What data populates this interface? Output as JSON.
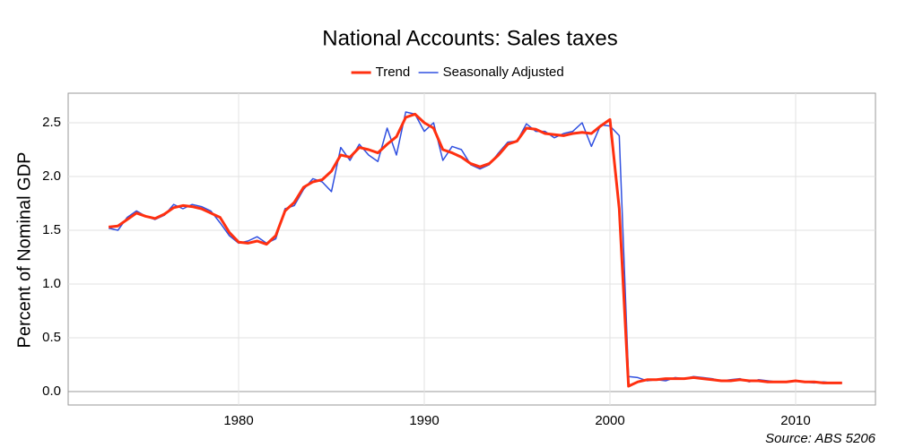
{
  "chart_data": {
    "type": "line",
    "title": "National Accounts: Sales taxes",
    "y_label": "Percent of Nominal GDP",
    "annotation": "Source: ABS 5206",
    "legend": "top",
    "grid": true,
    "x": [
      1973.0,
      1973.5,
      1974.0,
      1974.5,
      1975.0,
      1975.5,
      1976.0,
      1976.5,
      1977.0,
      1977.5,
      1978.0,
      1978.5,
      1979.0,
      1979.5,
      1980.0,
      1980.5,
      1981.0,
      1981.5,
      1982.0,
      1982.5,
      1983.0,
      1983.5,
      1984.0,
      1984.5,
      1985.0,
      1985.5,
      1986.0,
      1986.5,
      1987.0,
      1987.5,
      1988.0,
      1988.5,
      1989.0,
      1989.5,
      1990.0,
      1990.5,
      1991.0,
      1991.5,
      1992.0,
      1992.5,
      1993.0,
      1993.5,
      1994.0,
      1994.5,
      1995.0,
      1995.5,
      1996.0,
      1996.5,
      1997.0,
      1997.5,
      1998.0,
      1998.5,
      1999.0,
      1999.5,
      2000.0,
      2000.5,
      2001.0,
      2001.5,
      2002.0,
      2002.5,
      2003.0,
      2003.5,
      2004.0,
      2004.5,
      2005.0,
      2005.5,
      2006.0,
      2006.5,
      2007.0,
      2007.5,
      2008.0,
      2008.5,
      2009.0,
      2009.5,
      2010.0,
      2010.5,
      2011.0,
      2011.5,
      2012.0,
      2012.5
    ],
    "series": [
      {
        "name": "Trend",
        "color": "#ff3010",
        "values": [
          1.53,
          1.54,
          1.6,
          1.66,
          1.63,
          1.61,
          1.65,
          1.71,
          1.73,
          1.72,
          1.7,
          1.66,
          1.62,
          1.48,
          1.39,
          1.38,
          1.4,
          1.37,
          1.45,
          1.68,
          1.76,
          1.9,
          1.95,
          1.97,
          2.05,
          2.2,
          2.18,
          2.27,
          2.25,
          2.22,
          2.3,
          2.37,
          2.55,
          2.58,
          2.5,
          2.45,
          2.25,
          2.22,
          2.18,
          2.12,
          2.09,
          2.12,
          2.2,
          2.3,
          2.33,
          2.45,
          2.44,
          2.4,
          2.39,
          2.38,
          2.4,
          2.41,
          2.4,
          2.47,
          2.53,
          1.7,
          0.05,
          0.09,
          0.11,
          0.11,
          0.12,
          0.12,
          0.12,
          0.13,
          0.12,
          0.11,
          0.1,
          0.1,
          0.11,
          0.1,
          0.1,
          0.09,
          0.09,
          0.09,
          0.1,
          0.09,
          0.09,
          0.08,
          0.08,
          0.08
        ]
      },
      {
        "name": "Seasonally Adjusted",
        "color": "#3050e0",
        "values": [
          1.52,
          1.5,
          1.62,
          1.68,
          1.63,
          1.6,
          1.64,
          1.74,
          1.7,
          1.74,
          1.72,
          1.68,
          1.57,
          1.45,
          1.38,
          1.4,
          1.44,
          1.38,
          1.42,
          1.7,
          1.73,
          1.88,
          1.98,
          1.95,
          1.86,
          2.27,
          2.15,
          2.3,
          2.2,
          2.14,
          2.45,
          2.2,
          2.6,
          2.58,
          2.42,
          2.5,
          2.15,
          2.28,
          2.25,
          2.11,
          2.07,
          2.11,
          2.22,
          2.32,
          2.33,
          2.49,
          2.42,
          2.42,
          2.36,
          2.4,
          2.42,
          2.5,
          2.28,
          2.48,
          2.47,
          2.38,
          0.14,
          0.13,
          0.1,
          0.11,
          0.1,
          0.13,
          0.12,
          0.14,
          0.13,
          0.12,
          0.1,
          0.11,
          0.12,
          0.09,
          0.11,
          0.1,
          0.09,
          0.09,
          0.1,
          0.09,
          0.08,
          0.09,
          0.08,
          0.08
        ]
      }
    ],
    "xlim": [
      1970.82,
      2014.3
    ],
    "xticks": [
      1980,
      1990,
      2000,
      2010
    ],
    "ylim": [
      -0.125,
      2.775
    ],
    "yticks": [
      {
        "value": 0,
        "label": "0.0"
      },
      0.5,
      {
        "value": 1,
        "label": "1.0"
      },
      1.5,
      {
        "value": 2,
        "label": "2.0"
      },
      2.5
    ]
  }
}
